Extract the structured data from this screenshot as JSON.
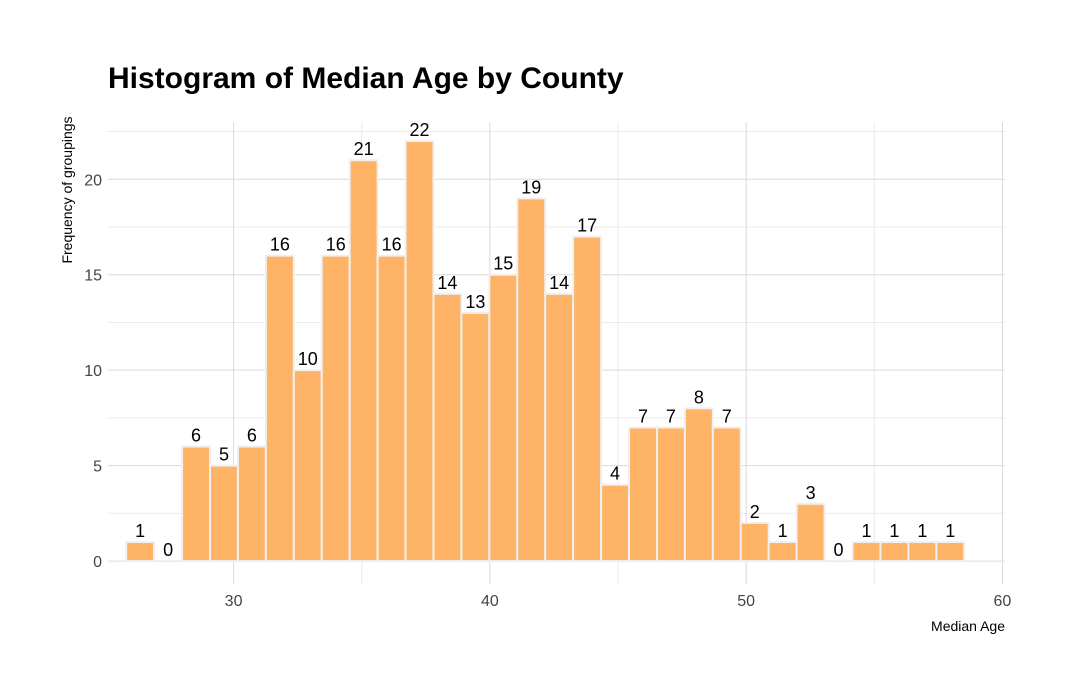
{
  "chart_data": {
    "type": "bar",
    "title": "Histogram of Median Age by County",
    "xlabel": "Median Age",
    "ylabel": "Frequency of groupings",
    "xlim": [
      25.1,
      60.1
    ],
    "ylim": [
      -1.2,
      23.0
    ],
    "bin_width": 1.09,
    "bin_start": 25.81,
    "x_ticks": [
      30,
      40,
      50,
      60
    ],
    "y_ticks": [
      0,
      5,
      10,
      15,
      20
    ],
    "grid": true,
    "values": [
      1,
      0,
      6,
      5,
      6,
      16,
      10,
      16,
      21,
      16,
      22,
      14,
      13,
      15,
      19,
      14,
      17,
      4,
      7,
      7,
      8,
      7,
      2,
      1,
      3,
      0,
      1,
      1,
      1,
      1
    ],
    "colors": {
      "bar_fill": "#FFB366",
      "bar_stroke": "#F0F0F0",
      "grid": "#D9D9D9"
    }
  }
}
